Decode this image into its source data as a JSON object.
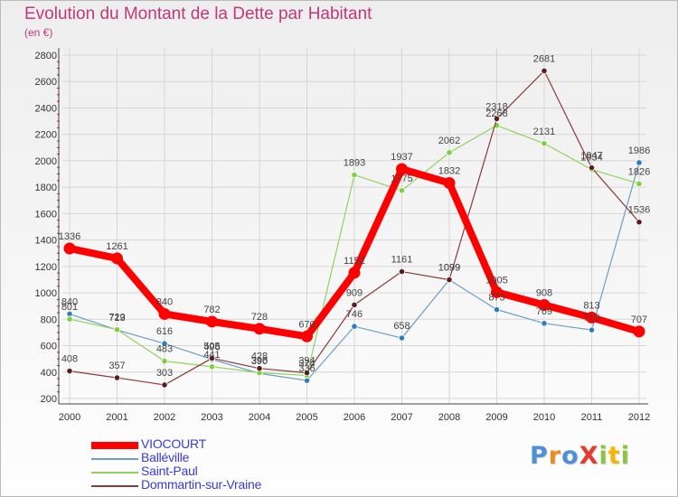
{
  "title": "Evolution du Montant de la Dette par Habitant",
  "unit_label": "(en €)",
  "logo": {
    "text": "ProXiti",
    "colors": [
      "#4f8fd6",
      "#f08a1c",
      "#4f8fd6",
      "#e23b2e",
      "#8cc63f",
      "#f2b705",
      "#8cc63f"
    ]
  },
  "chart_data": {
    "type": "line",
    "title": "Evolution du Montant de la Dette par Habitant",
    "ylabel": "(en €)",
    "xlabel": "",
    "x": [
      "2000",
      "2001",
      "2002",
      "2003",
      "2004",
      "2005",
      "2006",
      "2007",
      "2008",
      "2009",
      "2010",
      "2011",
      "2012"
    ],
    "ylim": [
      200,
      2800
    ],
    "yticks": [
      200,
      400,
      600,
      800,
      1000,
      1200,
      1400,
      1600,
      1800,
      2000,
      2200,
      2400,
      2600,
      2800
    ],
    "grid": true,
    "legend_position": "bottom-left",
    "series": [
      {
        "name": "Balléville",
        "color": "#6a9fc9",
        "marker_color": "#2e7cc4",
        "width": 1.2,
        "values": [
          840,
          719,
          616,
          496,
          390,
          336,
          746,
          658,
          1099,
          873,
          769,
          719,
          1986
        ],
        "labels": [
          "840",
          "719",
          "616",
          "496",
          "390",
          "336",
          "746",
          "658",
          "1099",
          "873",
          "769",
          "719",
          "1986"
        ]
      },
      {
        "name": "Saint-Paul",
        "color": "#8fd35e",
        "marker_color": "#7bd13a",
        "width": 1.2,
        "values": [
          801,
          722,
          483,
          441,
          396,
          374,
          1893,
          1775,
          2062,
          2268,
          2131,
          1934,
          1826
        ],
        "labels": [
          "801",
          "722",
          "483",
          "441",
          "396",
          "374",
          "1893",
          "1775",
          "2062",
          "2268",
          "2131",
          "1934",
          "1826"
        ]
      },
      {
        "name": "Dommartin-sur-Vraine",
        "color": "#8b3a3a",
        "marker_color": "#5a1c1c",
        "width": 1.2,
        "values": [
          408,
          357,
          303,
          505,
          428,
          394,
          909,
          1161,
          1099,
          2318,
          2681,
          1947,
          1536
        ],
        "labels": [
          "408",
          "357",
          "303",
          "505",
          "428",
          "394",
          "909",
          "1161",
          "1099",
          "2318",
          "2681",
          "1947",
          "1536"
        ]
      },
      {
        "name": "VIOCOURT",
        "color": "#ff0000",
        "marker_color": "#ff0000",
        "width": 8,
        "values": [
          1336,
          1261,
          840,
          782,
          728,
          670,
          1152,
          1937,
          1832,
          1005,
          908,
          813,
          707
        ],
        "labels": [
          "1336",
          "1261",
          "840",
          "782",
          "728",
          "670",
          "1152",
          "1937",
          "1832",
          "1005",
          "908",
          "813",
          "707"
        ]
      }
    ],
    "legend": [
      {
        "name": "VIOCOURT",
        "color": "#ff0000",
        "text_color": "#3a3ad6"
      },
      {
        "name": "Balléville",
        "color": "#6a9fc9",
        "text_color": "#3a3ad6"
      },
      {
        "name": "Saint-Paul",
        "color": "#8fd35e",
        "text_color": "#3a3ad6"
      },
      {
        "name": "Dommartin-sur-Vraine",
        "color": "#8b3a3a",
        "text_color": "#3a3ad6"
      }
    ]
  }
}
